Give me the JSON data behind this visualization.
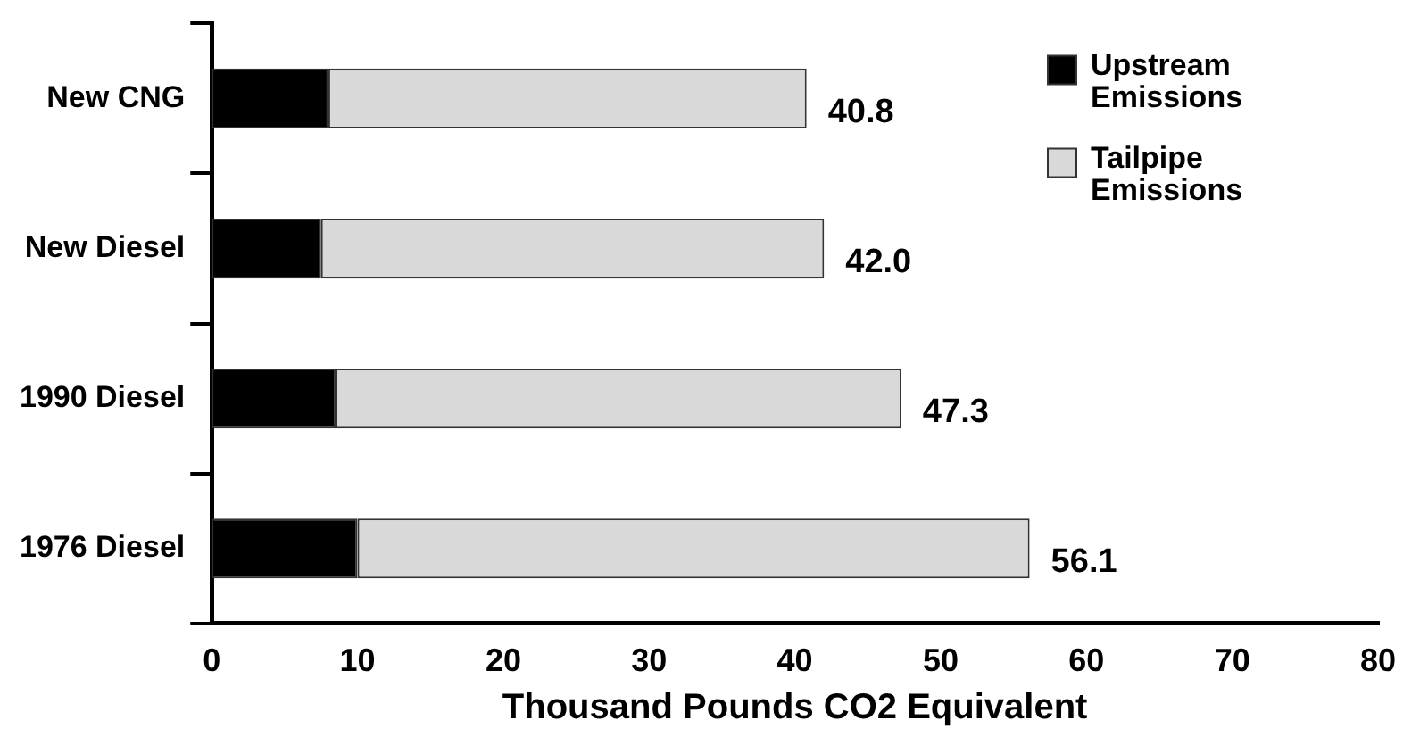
{
  "chart_data": {
    "type": "bar",
    "orientation": "horizontal",
    "stacked": true,
    "xlabel": "Thousand Pounds CO2 Equivalent",
    "categories": [
      "New CNG",
      "New Diesel",
      "1990 Diesel",
      "1976 Diesel"
    ],
    "series": [
      {
        "name": "Upstream Emissions",
        "color": "#000000",
        "values": [
          8.0,
          7.5,
          8.5,
          10.0
        ]
      },
      {
        "name": "Tailpipe Emissions",
        "color": "#d9d9d9",
        "values": [
          32.8,
          34.5,
          38.8,
          46.1
        ]
      }
    ],
    "totals": [
      "40.8",
      "42.0",
      "47.3",
      "56.1"
    ],
    "xlim": [
      0,
      80
    ],
    "xticks": [
      0,
      10,
      20,
      30,
      40,
      50,
      60,
      70,
      80
    ],
    "grid": false,
    "legend": "top right"
  }
}
